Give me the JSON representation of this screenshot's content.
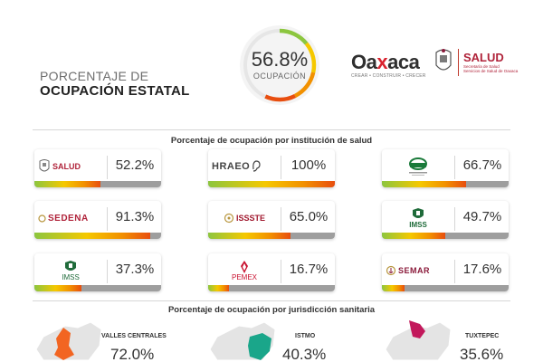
{
  "header": {
    "title_line1": "PORCENTAJE DE",
    "title_line2": "OCUPACIÓN ESTATAL",
    "occupancy_value": "56.8%",
    "occupancy_label": "OCUPACIÓN",
    "occupancy_fraction": 0.568,
    "gauge_colors": [
      "#8cc63f",
      "#f5c800",
      "#f29100",
      "#e84e0f"
    ]
  },
  "branding": {
    "oaxaca_pre": "Oa",
    "oaxaca_x": "x",
    "oaxaca_post": "aca",
    "oaxaca_tagline": "CREAR • CONSTRUIR • CRECER",
    "salud_name": "SALUD",
    "salud_sub1": "Secretaría de Salud",
    "salud_sub2": "Servicios de Salud de Oaxaca"
  },
  "institutions_title": "Porcentaje de ocupación por institución de salud",
  "institutions": [
    {
      "logo": "SALUD",
      "logo_icon": "salud-seal-icon",
      "value": "52.2%",
      "fraction": 0.522
    },
    {
      "logo": "HRAEO",
      "logo_icon": "hraeo-logo-icon",
      "value": "100%",
      "fraction": 1.0
    },
    {
      "logo": "",
      "logo_icon": "hospital-niñez-logo-icon",
      "value": "66.7%",
      "fraction": 0.667
    },
    {
      "logo": "SEDENA",
      "logo_icon": "sedena-logo-icon",
      "value": "91.3%",
      "fraction": 0.913
    },
    {
      "logo": "ISSSTE",
      "logo_icon": "issste-logo-icon",
      "value": "65.0%",
      "fraction": 0.65
    },
    {
      "logo": "IMSS",
      "logo_icon": "imss-logo-icon",
      "value": "49.7%",
      "fraction": 0.497
    },
    {
      "logo": "IMSS",
      "logo_icon": "imss-bienestar-logo-icon",
      "value": "37.3%",
      "fraction": 0.373
    },
    {
      "logo": "PEMEX",
      "logo_icon": "pemex-logo-icon",
      "value": "16.7%",
      "fraction": 0.167
    },
    {
      "logo": "SEMAR",
      "logo_icon": "semar-logo-icon",
      "value": "17.6%",
      "fraction": 0.176
    }
  ],
  "jurisdictions_title": "Porcentaje de ocupación por jurisdicción sanitaria",
  "jurisdictions": [
    {
      "name": "VALLES CENTRALES",
      "value": "72.0%",
      "color": "#f26522"
    },
    {
      "name": "ISTMO",
      "value": "40.3%",
      "color": "#1aa68a"
    },
    {
      "name": "TUXTEPEC",
      "value": "35.6%",
      "color": "#c2185b"
    }
  ]
}
